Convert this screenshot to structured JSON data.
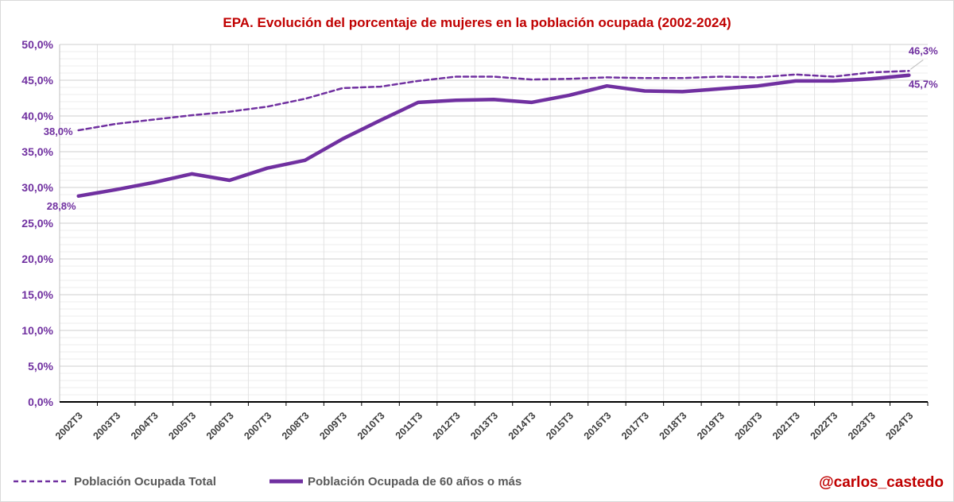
{
  "chart_data": {
    "type": "line",
    "title": "EPA. Evolución del porcentaje de mujeres en la población ocupada (2002-2024)",
    "xlabel": "",
    "ylabel": "",
    "ylim": [
      0,
      50
    ],
    "y_tick_step": 5,
    "y_ticks": [
      "0,0%",
      "5,0%",
      "10,0%",
      "15,0%",
      "20,0%",
      "25,0%",
      "30,0%",
      "35,0%",
      "40,0%",
      "45,0%",
      "50,0%"
    ],
    "grid": true,
    "categories": [
      "2002T3",
      "2003T3",
      "2004T3",
      "2005T3",
      "2006T3",
      "2007T3",
      "2008T3",
      "2009T3",
      "2010T3",
      "2011T3",
      "2012T3",
      "2013T3",
      "2014T3",
      "2015T3",
      "2016T3",
      "2017T3",
      "2018T3",
      "2019T3",
      "2020T3",
      "2021T3",
      "2022T3",
      "2023T3",
      "2024T3"
    ],
    "series": [
      {
        "name": "Población Ocupada Total",
        "style": "dashed",
        "color": "#7030a0",
        "values": [
          38.0,
          38.9,
          39.5,
          40.1,
          40.6,
          41.3,
          42.4,
          43.9,
          44.1,
          44.9,
          45.5,
          45.5,
          45.1,
          45.2,
          45.4,
          45.3,
          45.3,
          45.5,
          45.4,
          45.8,
          45.5,
          46.1,
          46.3
        ],
        "labels": [
          {
            "index": 0,
            "text": "38,0%"
          },
          {
            "index": 22,
            "text": "46,3%"
          }
        ]
      },
      {
        "name": "Población Ocupada de 60 años o más",
        "style": "solid",
        "color": "#7030a0",
        "values": [
          28.8,
          29.7,
          30.7,
          31.9,
          31.0,
          32.7,
          33.8,
          36.8,
          39.4,
          41.9,
          42.2,
          42.3,
          41.9,
          42.9,
          44.2,
          43.5,
          43.4,
          43.8,
          44.2,
          44.9,
          44.9,
          45.2,
          45.7
        ],
        "labels": [
          {
            "index": 0,
            "text": "28,8%"
          },
          {
            "index": 22,
            "text": "45,7%"
          }
        ]
      }
    ],
    "legend_position": "bottom-left"
  },
  "credit": "@carlos_castedo"
}
